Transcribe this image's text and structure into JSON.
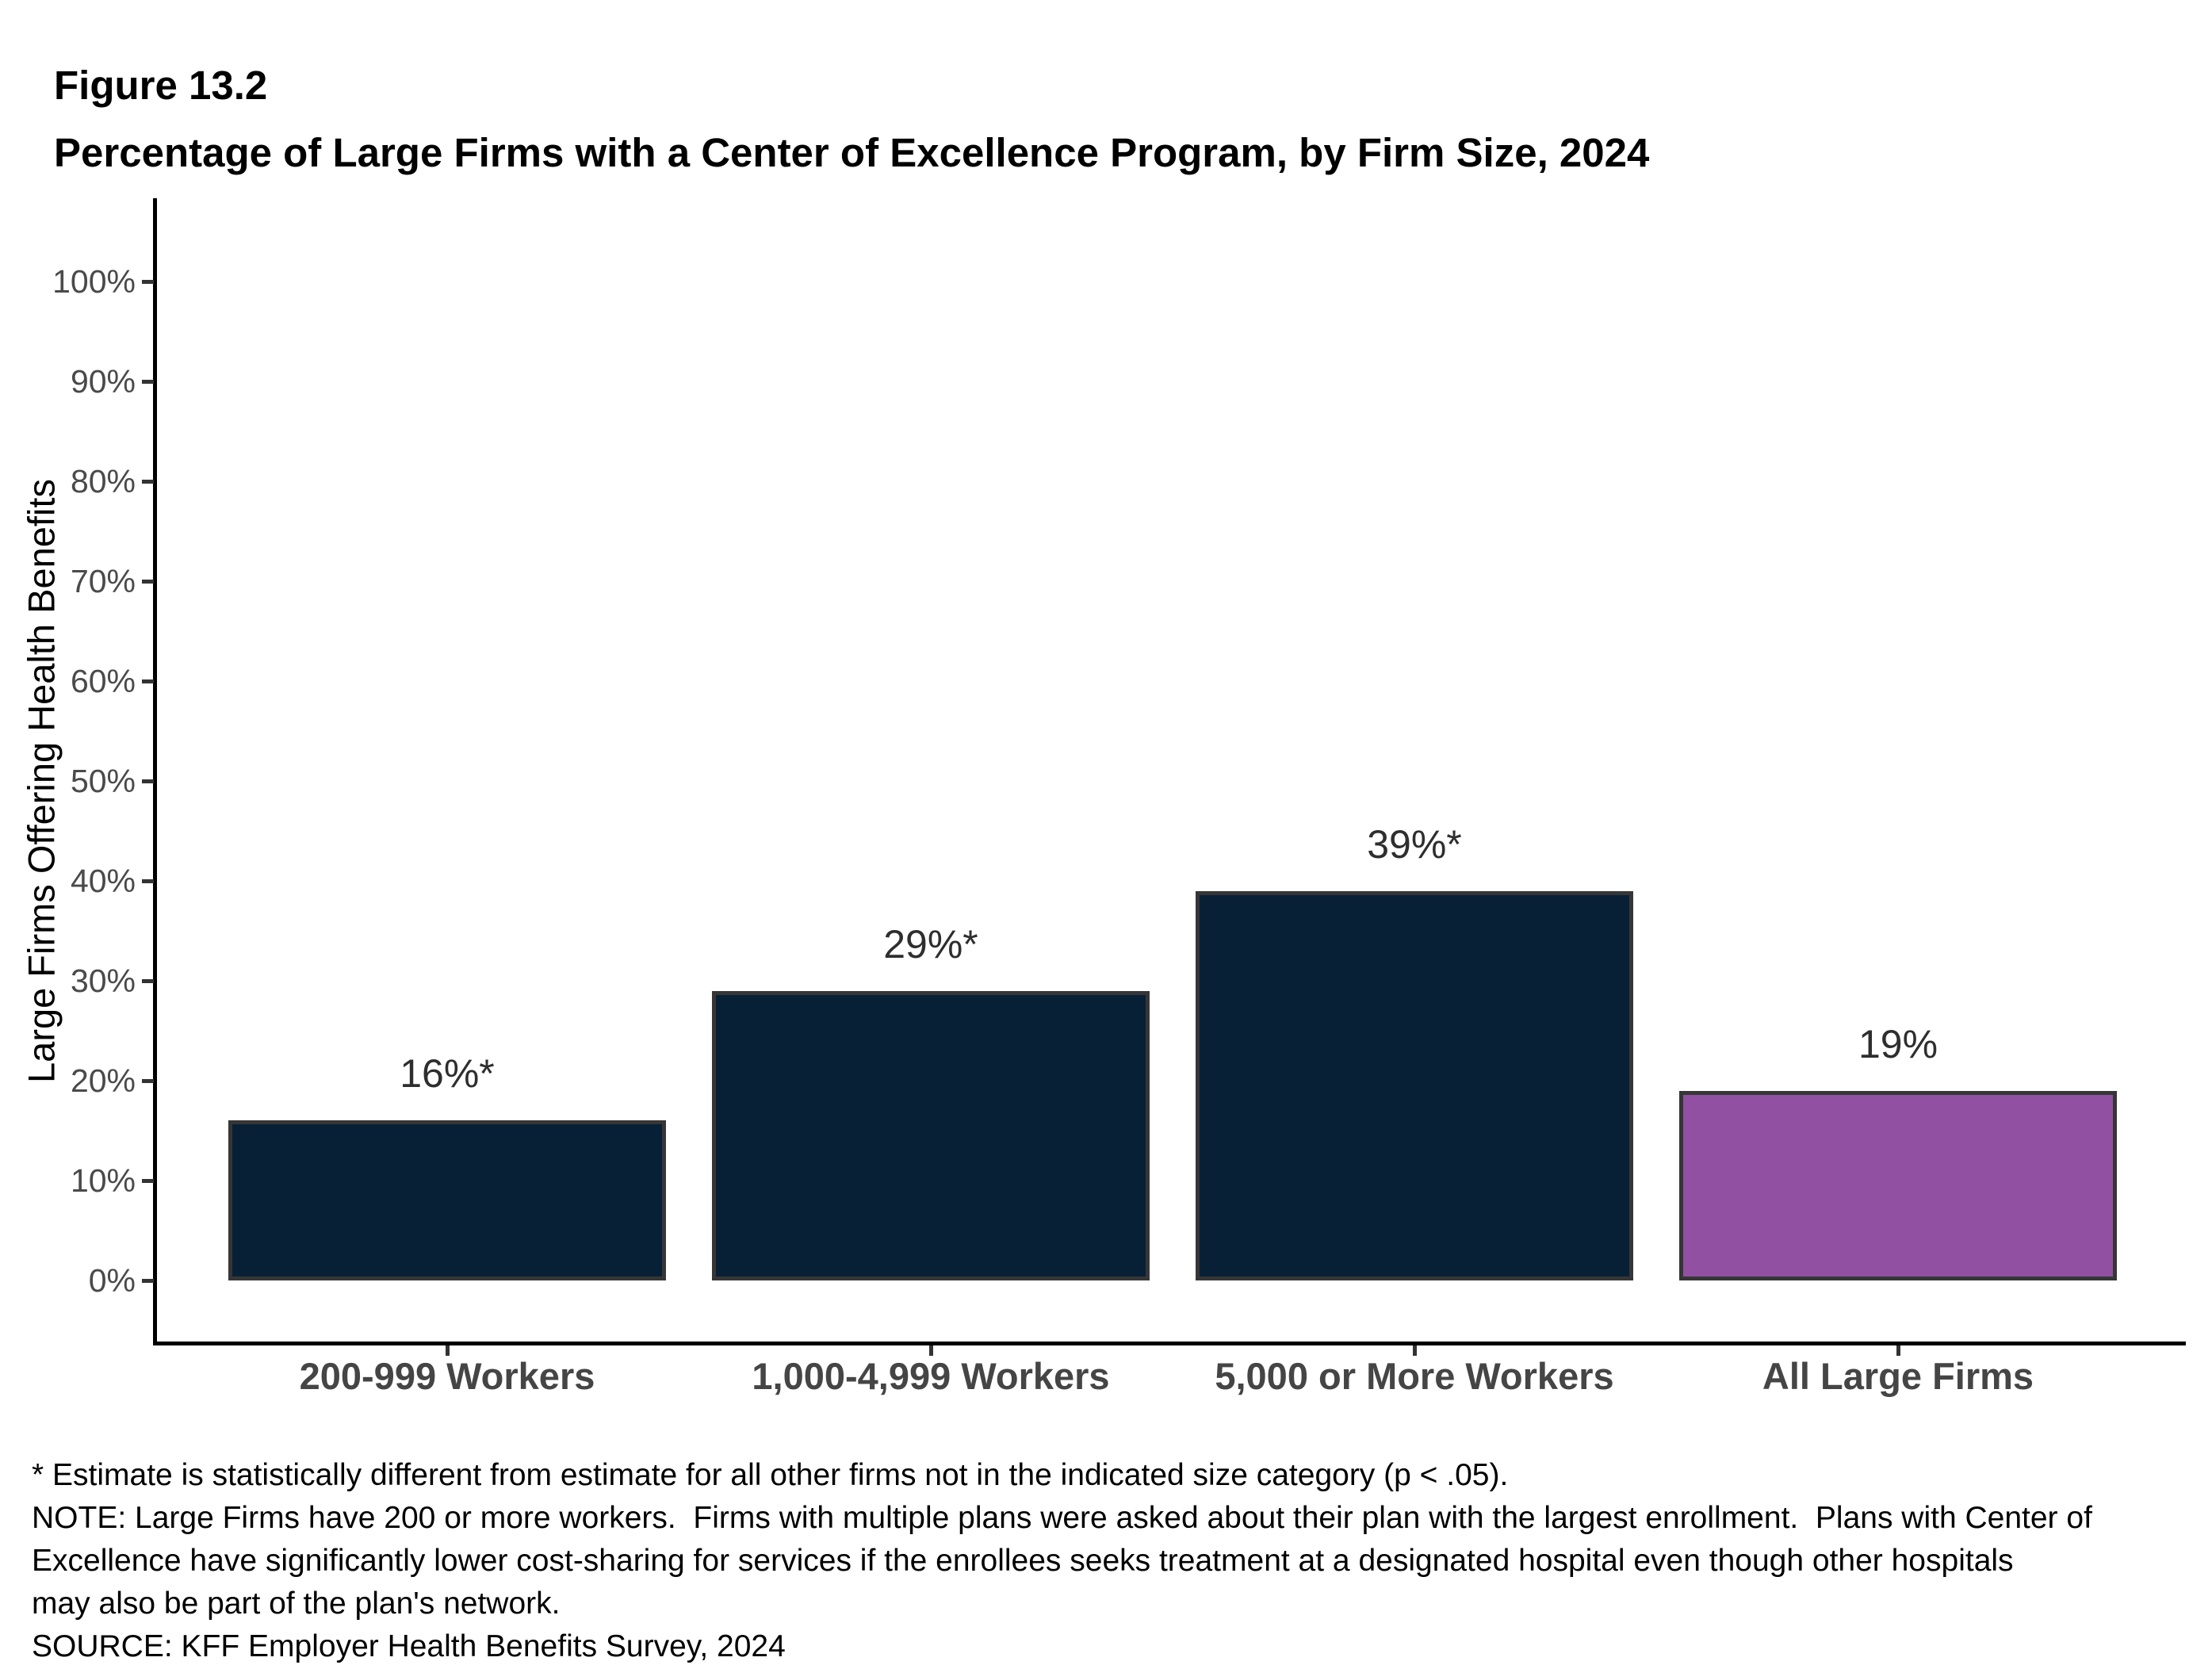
{
  "header": {
    "figure_number": "Figure 13.2",
    "title": "Percentage of Large Firms with a Center of Excellence Program, by Firm Size, 2024"
  },
  "chart_data": {
    "type": "bar",
    "title": "Percentage of Large Firms with a Center of Excellence Program, by Firm Size, 2024",
    "categories": [
      "200-999 Workers",
      "1,000-4,999 Workers",
      "5,000 or More Workers",
      "All Large Firms"
    ],
    "values": [
      16,
      29,
      39,
      19
    ],
    "value_labels": [
      "16%*",
      "29%*",
      "39%*",
      "19%"
    ],
    "bar_colors": [
      "#082036",
      "#082036",
      "#082036",
      "#9150A2"
    ],
    "xlabel": "",
    "ylabel": "Large Firms Offering Health Benefits",
    "ylim": [
      0,
      100
    ],
    "y_tick_values": [
      0,
      10,
      20,
      30,
      40,
      50,
      60,
      70,
      80,
      90,
      100
    ],
    "y_tick_labels": [
      "0%",
      "10%",
      "20%",
      "30%",
      "40%",
      "50%",
      "60%",
      "70%",
      "80%",
      "90%",
      "100%"
    ],
    "grid": "off",
    "legend": "none"
  },
  "colors": {
    "bar_navy": "#082036",
    "bar_purple": "#9150A2",
    "bar_border": "#363636",
    "axis_line": "#000000",
    "tick_label": "#4a4a4a",
    "category_label": "#454545",
    "value_label": "#2e2e2e"
  },
  "footnotes": {
    "lines": [
      "* Estimate is statistically different from estimate for all other firms not in the indicated size category (p < .05).",
      "NOTE: Large Firms have 200 or more workers.  Firms with multiple plans were asked about their plan with the largest enrollment.  Plans with Center of",
      "Excellence have significantly lower cost-sharing for services if the enrollees seeks treatment at a designated hospital even though other hospitals",
      "may also be part of the plan's network.",
      "SOURCE: KFF Employer Health Benefits Survey, 2024"
    ]
  }
}
